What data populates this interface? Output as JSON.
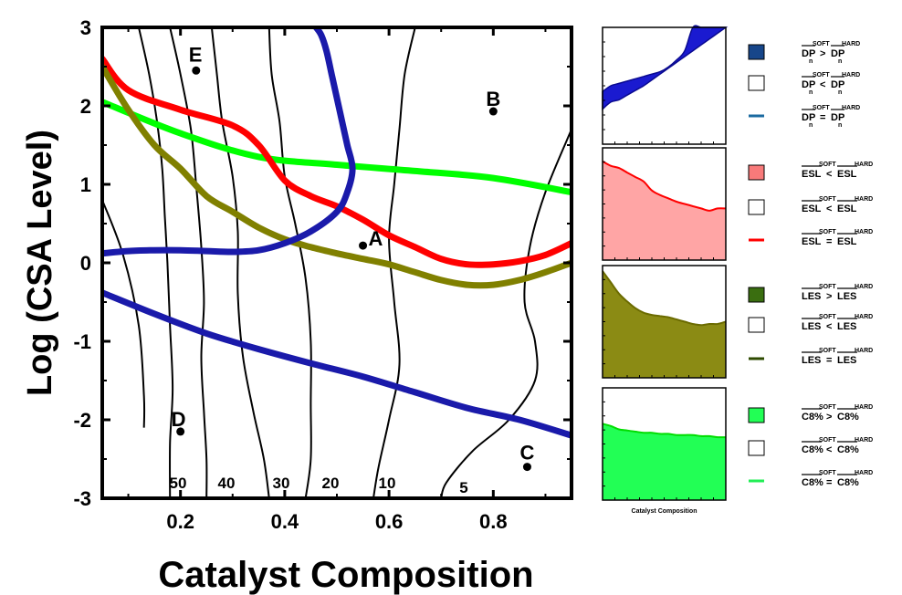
{
  "chart_data": {
    "type": "line",
    "main": {
      "xlabel": "Catalyst Composition",
      "ylabel": "Log (CSA Level)",
      "xlim": [
        0.05,
        0.95
      ],
      "ylim": [
        -3,
        3
      ],
      "xticks": [
        "0.2",
        "0.4",
        "0.6",
        "0.8"
      ],
      "xtick_values": [
        0.2,
        0.4,
        0.6,
        0.8
      ],
      "yticks": [
        "-3",
        "-2",
        "-1",
        "0",
        "1",
        "2",
        "3"
      ],
      "ytick_values": [
        -3,
        -2,
        -1,
        0,
        1,
        2,
        3
      ],
      "series": [
        {
          "color": "#00ff00",
          "x": [
            0.05,
            0.2,
            0.35,
            0.5,
            0.65,
            0.8,
            0.95
          ],
          "y": [
            2.05,
            1.65,
            1.35,
            1.25,
            1.17,
            1.08,
            0.9
          ]
        },
        {
          "color": "#ff0000",
          "x": [
            0.05,
            0.1,
            0.2,
            0.3,
            0.35,
            0.4,
            0.45,
            0.5,
            0.55,
            0.6,
            0.65,
            0.7,
            0.75,
            0.8,
            0.85,
            0.9,
            0.95
          ],
          "y": [
            2.6,
            2.2,
            1.95,
            1.75,
            1.5,
            1.05,
            0.85,
            0.72,
            0.55,
            0.35,
            0.2,
            0.05,
            -0.02,
            -0.02,
            0.02,
            0.1,
            0.25
          ]
        },
        {
          "color": "#808000",
          "x": [
            0.05,
            0.1,
            0.15,
            0.2,
            0.25,
            0.3,
            0.35,
            0.4,
            0.45,
            0.5,
            0.55,
            0.6,
            0.65,
            0.7,
            0.75,
            0.8,
            0.85,
            0.9,
            0.95
          ],
          "y": [
            2.5,
            1.95,
            1.5,
            1.2,
            0.85,
            0.65,
            0.45,
            0.3,
            0.2,
            0.12,
            0.05,
            -0.02,
            -0.12,
            -0.22,
            -0.28,
            -0.28,
            -0.22,
            -0.12,
            0.0
          ]
        },
        {
          "color": "#1a1aaa",
          "x": [
            0.05,
            0.1,
            0.15,
            0.2,
            0.25,
            0.3,
            0.35,
            0.4,
            0.45,
            0.5,
            0.52,
            0.53,
            0.52,
            0.51,
            0.5,
            0.49,
            0.48,
            0.47,
            0.46
          ],
          "y": [
            0.12,
            0.15,
            0.16,
            0.16,
            0.15,
            0.14,
            0.16,
            0.25,
            0.4,
            0.65,
            0.9,
            1.2,
            1.5,
            1.8,
            2.1,
            2.4,
            2.7,
            2.9,
            3.0
          ]
        },
        {
          "color": "#1a1aaa",
          "x": [
            0.05,
            0.15,
            0.25,
            0.35,
            0.45,
            0.55,
            0.65,
            0.75,
            0.85,
            0.95
          ],
          "y": [
            -0.38,
            -0.65,
            -0.9,
            -1.1,
            -1.28,
            -1.45,
            -1.65,
            -1.85,
            -2.0,
            -2.2
          ]
        }
      ],
      "contours": [
        {
          "label": "50",
          "x": [
            0.12,
            0.14,
            0.155,
            0.165,
            0.17,
            0.175,
            0.18,
            0.185,
            0.18,
            0.18
          ],
          "y": [
            3.0,
            2.4,
            1.8,
            1.2,
            0.6,
            0.0,
            -0.8,
            -1.6,
            -2.3,
            -3.0
          ]
        },
        {
          "label": "40",
          "x": [
            0.18,
            0.2,
            0.22,
            0.23,
            0.24,
            0.245,
            0.24,
            0.245,
            0.25,
            0.25
          ],
          "y": [
            3.0,
            2.4,
            1.7,
            1.0,
            0.2,
            -0.5,
            -1.2,
            -1.9,
            -2.5,
            -3.0
          ]
        },
        {
          "label": "30",
          "x": [
            0.26,
            0.27,
            0.28,
            0.3,
            0.31,
            0.31,
            0.32,
            0.34,
            0.36,
            0.37
          ],
          "y": [
            3.0,
            2.4,
            1.8,
            1.1,
            0.4,
            -0.4,
            -1.2,
            -1.9,
            -2.5,
            -3.0
          ]
        },
        {
          "label": "20",
          "x": [
            0.37,
            0.375,
            0.39,
            0.4,
            0.42,
            0.44,
            0.45,
            0.45,
            0.45,
            0.44
          ],
          "y": [
            3.0,
            2.4,
            1.8,
            1.1,
            0.5,
            -0.2,
            -1.0,
            -1.8,
            -2.5,
            -3.0
          ]
        },
        {
          "label": "10",
          "x": [
            0.65,
            0.63,
            0.62,
            0.61,
            0.6,
            0.61,
            0.62,
            0.6,
            0.58,
            0.57
          ],
          "y": [
            3.0,
            2.4,
            1.7,
            1.0,
            0.3,
            -0.5,
            -1.3,
            -2.0,
            -2.6,
            -3.0
          ]
        },
        {
          "label": "5",
          "x": [
            0.95,
            0.9,
            0.87,
            0.86,
            0.88,
            0.88,
            0.83,
            0.76,
            0.71,
            0.7
          ],
          "y": [
            1.7,
            0.9,
            0.2,
            -0.5,
            -1.0,
            -1.5,
            -2.0,
            -2.4,
            -2.8,
            -3.0
          ]
        },
        {
          "label": "",
          "x": [
            0.05,
            0.09,
            0.12,
            0.13,
            0.13
          ],
          "y": [
            0.8,
            0.1,
            -0.8,
            -1.7,
            -2.1
          ]
        }
      ],
      "contour_labels": [
        "50",
        "40",
        "30",
        "20",
        "10",
        "5"
      ],
      "points": [
        {
          "label": "A",
          "x": 0.55,
          "y": 0.22
        },
        {
          "label": "B",
          "x": 0.8,
          "y": 1.93
        },
        {
          "label": "C",
          "x": 0.865,
          "y": -2.6
        },
        {
          "label": "D",
          "x": 0.2,
          "y": -2.15
        },
        {
          "label": "E",
          "x": 0.23,
          "y": 2.45
        }
      ]
    },
    "panels": [
      {
        "name": "DP",
        "fill": "#1a1ad0",
        "edge": "#0a0a90",
        "curve": [
          0.3,
          0.36,
          0.38,
          0.42,
          0.46,
          0.5,
          0.55,
          0.6,
          0.65,
          0.7,
          0.75,
          0.8,
          0.85,
          0.9,
          0.95,
          1.0
        ],
        "top": [
          0.45,
          0.5,
          0.52,
          0.54,
          0.56,
          0.58,
          0.6,
          0.62,
          0.66,
          0.72,
          0.8,
          1.0,
          1.0,
          1.0,
          1.0,
          1.0
        ]
      },
      {
        "name": "ESL",
        "fill": "#ffa5a5",
        "edge": "#ff0000",
        "curve": [
          0.88,
          0.84,
          0.82,
          0.78,
          0.74,
          0.7,
          0.62,
          0.58,
          0.55,
          0.52,
          0.5,
          0.48,
          0.46,
          0.44,
          0.46,
          0.46
        ]
      },
      {
        "name": "LES",
        "fill": "#8b8b14",
        "edge": "#6b6b00",
        "curve": [
          0.95,
          0.85,
          0.75,
          0.68,
          0.62,
          0.58,
          0.56,
          0.55,
          0.54,
          0.52,
          0.5,
          0.48,
          0.47,
          0.48,
          0.48,
          0.5
        ]
      },
      {
        "name": "C8",
        "fill": "#22ff55",
        "edge": "#00dd00",
        "curve": [
          0.68,
          0.66,
          0.63,
          0.62,
          0.61,
          0.6,
          0.6,
          0.59,
          0.59,
          0.58,
          0.58,
          0.58,
          0.57,
          0.57,
          0.56,
          0.56
        ]
      }
    ],
    "panel_xlabel": "Catalyst Composition",
    "legend": [
      {
        "kind": "box",
        "color": "#17468a",
        "base": "DP",
        "sub": "n",
        "op": ">"
      },
      {
        "kind": "box",
        "color": "#ffffff",
        "base": "DP",
        "sub": "n",
        "op": "<"
      },
      {
        "kind": "line",
        "color": "#1a6aa0",
        "base": "DP",
        "sub": "n",
        "op": "="
      },
      {
        "kind": "box",
        "color": "#f87a7a",
        "base": "ESL",
        "sub": "",
        "op": "<"
      },
      {
        "kind": "box",
        "color": "#ffffff",
        "base": "ESL",
        "sub": "",
        "op": "<"
      },
      {
        "kind": "line",
        "color": "#ff0000",
        "base": "ESL",
        "sub": "",
        "op": "="
      },
      {
        "kind": "box",
        "color": "#3a6e10",
        "base": "LES",
        "sub": "",
        "op": ">"
      },
      {
        "kind": "box",
        "color": "#ffffff",
        "base": "LES",
        "sub": "",
        "op": "<"
      },
      {
        "kind": "line",
        "color": "#2e4a00",
        "base": "LES",
        "sub": "",
        "op": "="
      },
      {
        "kind": "box",
        "color": "#22ff55",
        "base": "C8%",
        "sub": "",
        "op": ">"
      },
      {
        "kind": "box",
        "color": "#ffffff",
        "base": "C8%",
        "sub": "",
        "op": "<"
      },
      {
        "kind": "line",
        "color": "#22ee55",
        "base": "C8%",
        "sub": "",
        "op": "="
      }
    ],
    "legend_sup_soft": "SOFT",
    "legend_sup_hard": "HARD"
  }
}
